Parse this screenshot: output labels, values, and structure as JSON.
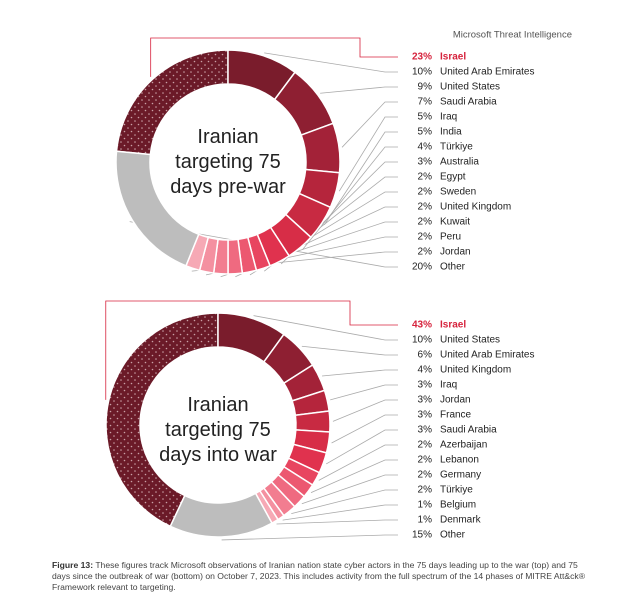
{
  "header": {
    "source": "Microsoft Threat Intelligence"
  },
  "chart_data": [
    {
      "type": "donut",
      "title": "Iranian targeting 75 days pre-war",
      "categories": [
        "Israel",
        "United Arab Emirates",
        "United States",
        "Saudi Arabia",
        "Iraq",
        "India",
        "Türkiye",
        "Australia",
        "Egypt",
        "Sweden",
        "United Kingdom",
        "Kuwait",
        "Peru",
        "Jordan",
        "Other"
      ],
      "values": [
        23,
        10,
        9,
        7,
        5,
        5,
        4,
        3,
        2,
        2,
        2,
        2,
        2,
        2,
        20
      ],
      "value_labels": [
        "23%",
        "10%",
        "9%",
        "7%",
        "5%",
        "5%",
        "4%",
        "3%",
        "2%",
        "2%",
        "2%",
        "2%",
        "2%",
        "2%",
        "20%"
      ],
      "colors": [
        "#6b1a28",
        "#7a1c2c",
        "#8e1f32",
        "#a32238",
        "#b5253c",
        "#c82a42",
        "#d72d47",
        "#e0324e",
        "#e84560",
        "#ec5870",
        "#ef6a80",
        "#f27d90",
        "#f490a0",
        "#f6a9b5",
        "#bdbdbd"
      ]
    },
    {
      "type": "donut",
      "title": "Iranian targeting 75 days into war",
      "categories": [
        "Israel",
        "United States",
        "United Arab Emirates",
        "United Kingdom",
        "Iraq",
        "Jordan",
        "France",
        "Saudi Arabia",
        "Azerbaijan",
        "Lebanon",
        "Germany",
        "Türkiye",
        "Belgium",
        "Denmark",
        "Other"
      ],
      "values": [
        43,
        10,
        6,
        4,
        3,
        3,
        3,
        3,
        2,
        2,
        2,
        2,
        1,
        1,
        15
      ],
      "value_labels": [
        "43%",
        "10%",
        "6%",
        "4%",
        "3%",
        "3%",
        "3%",
        "3%",
        "2%",
        "2%",
        "2%",
        "2%",
        "1%",
        "1%",
        "15%"
      ],
      "colors": [
        "#6b1a28",
        "#7a1c2c",
        "#8e1f32",
        "#a32238",
        "#b5253c",
        "#c82a42",
        "#d72d47",
        "#e0324e",
        "#e84560",
        "#ec5870",
        "#ef6a80",
        "#f27d90",
        "#f490a0",
        "#f6a9b5",
        "#bdbdbd"
      ]
    }
  ],
  "caption": {
    "label": "Figure 13:",
    "text": "These figures track Microsoft observations of Iranian nation state cyber actors in the 75 days leading up to the war (top) and 75 days since the outbreak of war (bottom) on October 7, 2023. This includes activity from the full spectrum of the 14 phases of MITRE Att&ck® Framework relevant to targeting."
  }
}
